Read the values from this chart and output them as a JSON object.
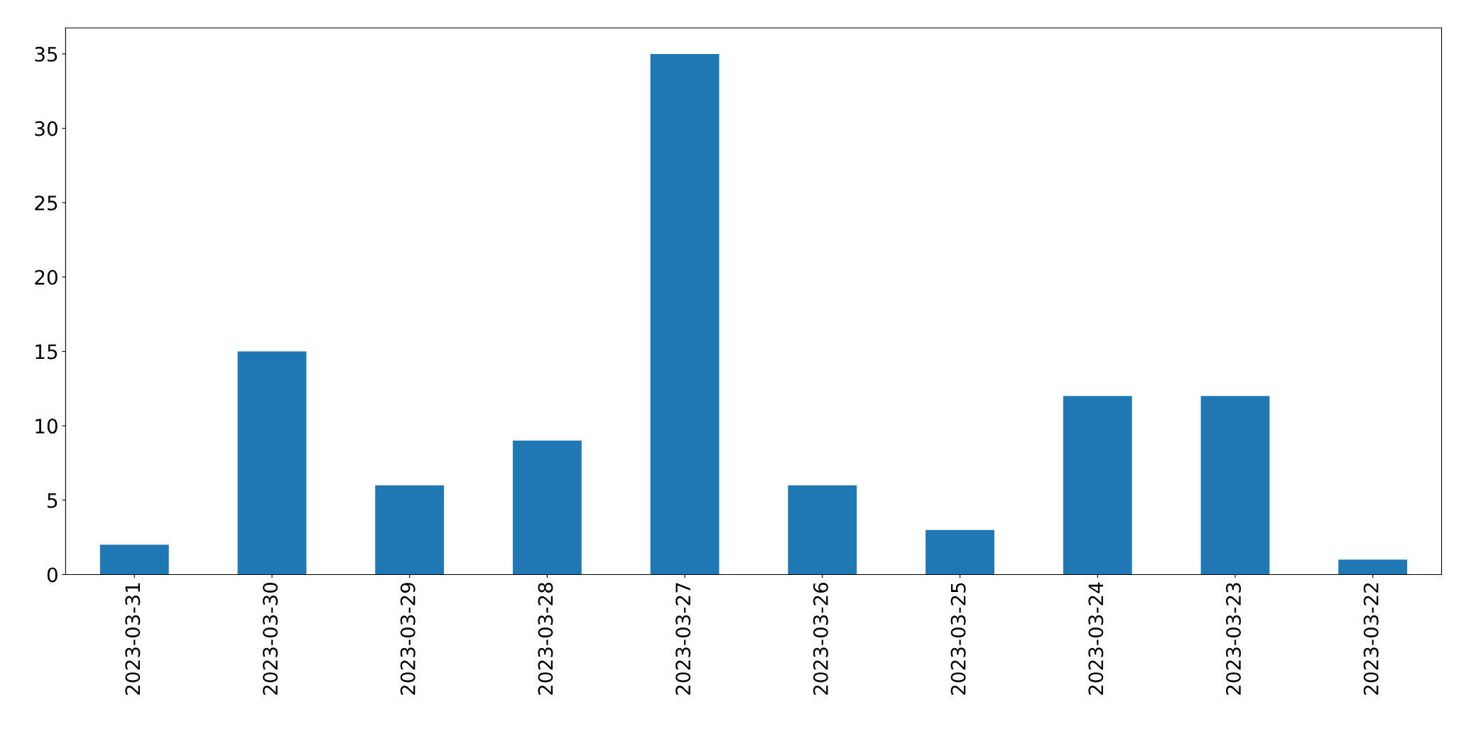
{
  "chart_data": {
    "type": "bar",
    "categories": [
      "2023-03-31",
      "2023-03-30",
      "2023-03-29",
      "2023-03-28",
      "2023-03-27",
      "2023-03-26",
      "2023-03-25",
      "2023-03-24",
      "2023-03-23",
      "2023-03-22"
    ],
    "values": [
      2,
      15,
      6,
      9,
      35,
      6,
      3,
      12,
      12,
      1
    ],
    "color": "#1f77b4",
    "ylim": [
      0,
      36.75
    ],
    "yticks": [
      0,
      5,
      10,
      15,
      20,
      25,
      30,
      35
    ],
    "grid": false,
    "legend": false
  }
}
